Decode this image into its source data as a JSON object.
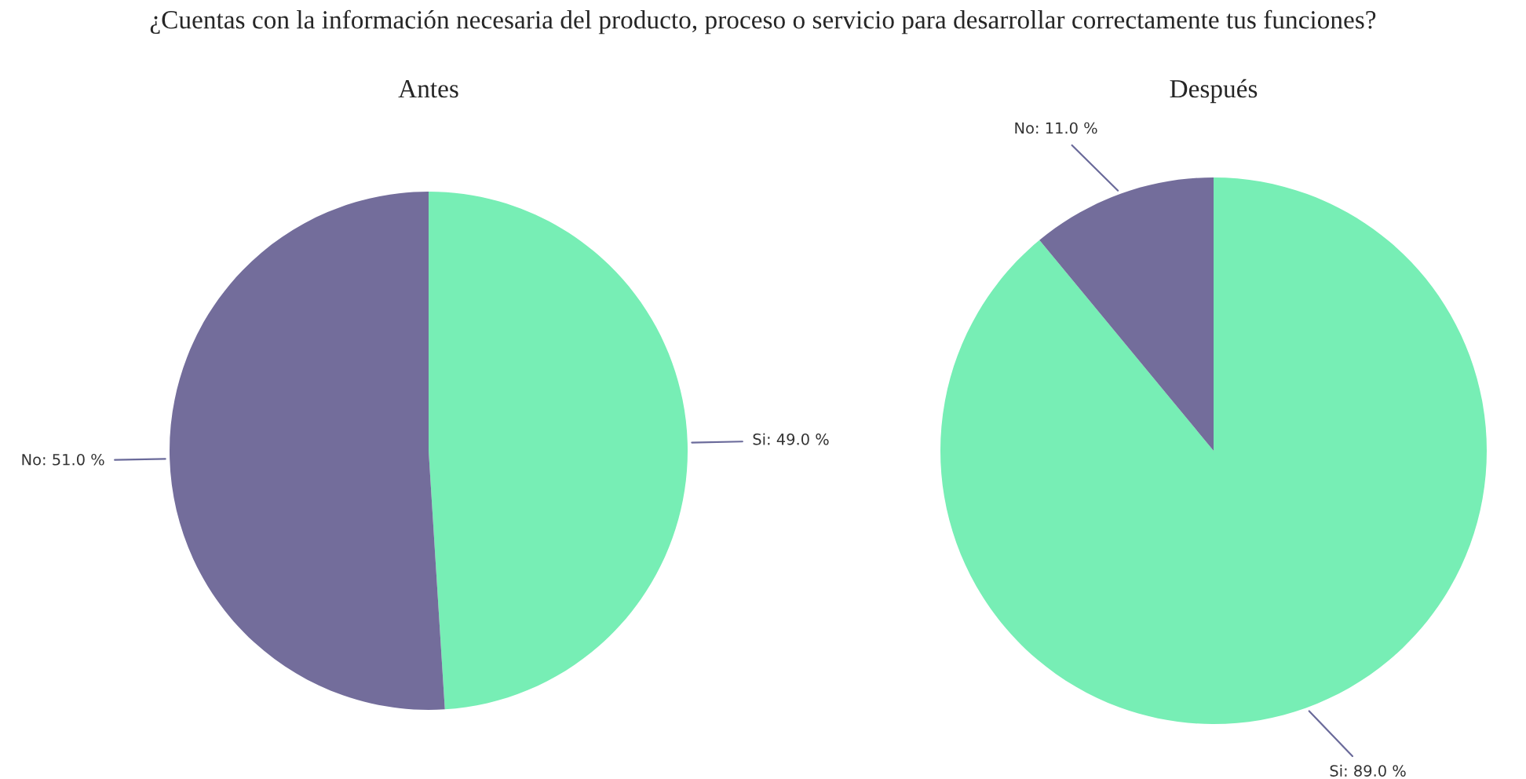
{
  "chart_data": [
    {
      "type": "pie",
      "title": "Antes",
      "annotations": [
        "¿Cuentas con la información necesaria del producto, proceso o servicio para desarrollar correctamente tus funciones?"
      ],
      "categories": [
        "Si",
        "No"
      ],
      "values": [
        49.0,
        51.0
      ],
      "colors": [
        "#77eeb5",
        "#736d9b"
      ],
      "value_labels": [
        "49.0 %",
        "51.0 %"
      ]
    },
    {
      "type": "pie",
      "title": "Después",
      "categories": [
        "Si",
        "No"
      ],
      "values": [
        89.0,
        11.0
      ],
      "colors": [
        "#77eeb5",
        "#736d9b"
      ],
      "value_labels": [
        "89.0 %",
        "11.0 %"
      ]
    }
  ]
}
